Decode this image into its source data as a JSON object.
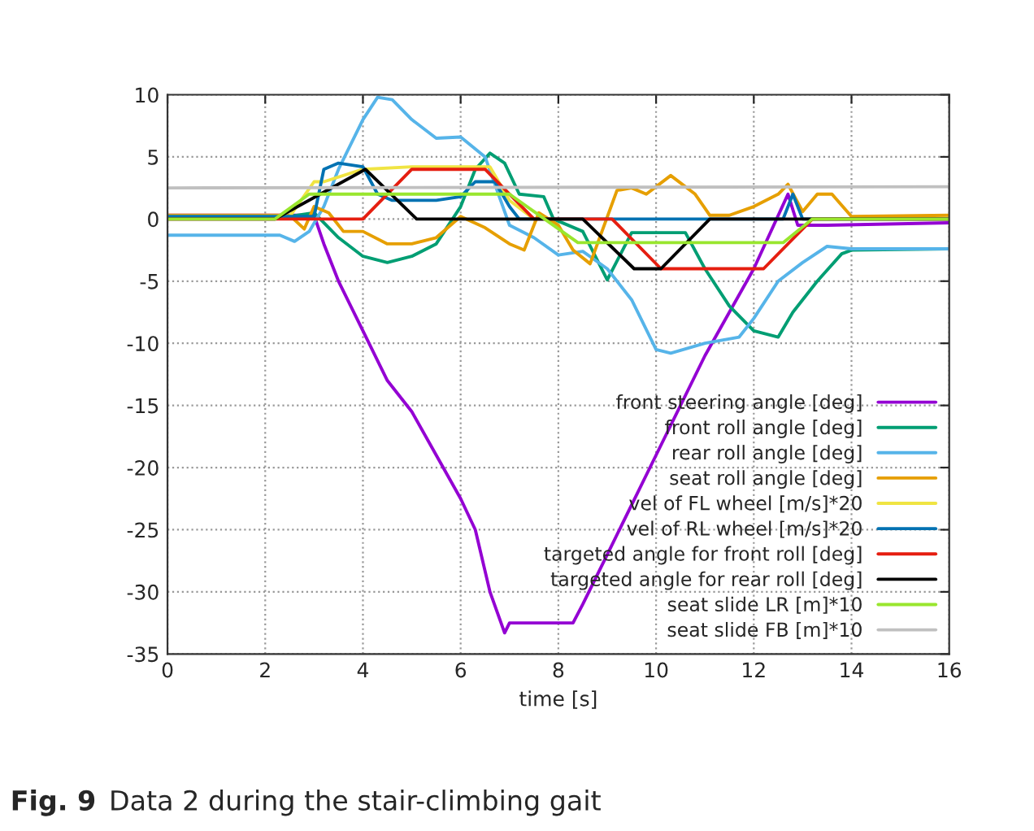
{
  "chart_data": {
    "type": "line",
    "xlabel": "time [s]",
    "xlim": [
      0,
      16
    ],
    "xticks": [
      0,
      2,
      4,
      6,
      8,
      10,
      12,
      14,
      16
    ],
    "ylim": [
      -35,
      10
    ],
    "yticks": [
      -35,
      -30,
      -25,
      -20,
      -15,
      -10,
      -5,
      0,
      5,
      10
    ],
    "grid": true,
    "legend": "bottom right",
    "line_style": "solid",
    "marker": "none",
    "annotations": [
      "Fig. 9",
      "Data 2 during the stair-climbing gait"
    ],
    "series": [
      {
        "name": "front steering angle [deg]",
        "color": "#9400d3",
        "x": [
          0,
          3.0,
          3.2,
          3.5,
          4.0,
          4.5,
          5.0,
          5.5,
          6.0,
          6.3,
          6.6,
          6.9,
          7.0,
          8.3,
          8.5,
          9.0,
          10.0,
          11.0,
          12.0,
          12.7,
          12.9,
          13.5,
          16
        ],
        "values": [
          0.3,
          0.3,
          -2,
          -5,
          -9,
          -13,
          -15.5,
          -19,
          -22.5,
          -25,
          -30,
          -33.3,
          -32.5,
          -32.5,
          -31,
          -27,
          -19,
          -11,
          -4,
          2,
          -0.5,
          -0.5,
          -0.3
        ]
      },
      {
        "name": "front roll angle [deg]",
        "color": "#009e73",
        "x": [
          0,
          2.5,
          3.0,
          3.5,
          4.0,
          4.5,
          5.0,
          5.5,
          6.0,
          6.3,
          6.6,
          6.9,
          7.2,
          7.7,
          7.9,
          8.5,
          9.0,
          9.5,
          10.6,
          11.0,
          11.5,
          12.0,
          12.5,
          12.8,
          13.3,
          13.8,
          14.0,
          16
        ],
        "values": [
          0.2,
          0.2,
          0.5,
          -1.5,
          -3,
          -3.5,
          -3,
          -2,
          1,
          4,
          5.3,
          4.5,
          2,
          1.8,
          0,
          -1,
          -4.9,
          -1.1,
          -1.1,
          -4,
          -7,
          -9,
          -9.5,
          -7.5,
          -5,
          -2.8,
          -2.5,
          -2.4
        ]
      },
      {
        "name": "rear roll angle [deg]",
        "color": "#56b4e9",
        "x": [
          0,
          2.3,
          2.6,
          2.9,
          3.2,
          3.5,
          4.0,
          4.3,
          4.6,
          5.0,
          5.5,
          6.0,
          6.5,
          7.0,
          7.5,
          8.0,
          8.5,
          9.0,
          9.5,
          10.0,
          10.3,
          11.0,
          11.7,
          12.0,
          12.5,
          13.0,
          13.5,
          14.0,
          16
        ],
        "values": [
          -1.3,
          -1.3,
          -1.8,
          -1,
          1,
          4,
          8,
          9.8,
          9.6,
          8,
          6.5,
          6.6,
          5,
          -0.5,
          -1.5,
          -2.9,
          -2.6,
          -4,
          -6.5,
          -10.5,
          -10.8,
          -10,
          -9.5,
          -8,
          -5,
          -3.5,
          -2.2,
          -2.4,
          -2.4
        ]
      },
      {
        "name": "seat roll angle [deg]",
        "color": "#e69f00",
        "x": [
          0,
          2.5,
          2.8,
          3.0,
          3.3,
          3.6,
          4.0,
          4.5,
          5.0,
          5.5,
          6.0,
          6.5,
          7.0,
          7.3,
          7.6,
          8.0,
          8.3,
          8.65,
          9.2,
          9.5,
          9.8,
          10.3,
          10.8,
          11.1,
          11.5,
          12.0,
          12.5,
          12.7,
          13.0,
          13.3,
          13.6,
          14.0,
          16
        ],
        "values": [
          0.3,
          0.3,
          -0.8,
          1,
          0.5,
          -1,
          -1,
          -2,
          -2,
          -1.5,
          0.2,
          -0.7,
          -2,
          -2.5,
          0.5,
          -0.5,
          -2.5,
          -3.6,
          2.3,
          2.5,
          2,
          3.5,
          2,
          0.3,
          0.3,
          1,
          2,
          2.8,
          0.6,
          2,
          2,
          0.2,
          0.3
        ]
      },
      {
        "name": "vel of FL wheel [m/s]*20",
        "color": "#f0e442",
        "x": [
          0,
          2.5,
          3.0,
          3.2,
          4.0,
          5.0,
          6.6,
          7.0,
          7.5
        ],
        "values": [
          0.2,
          0.2,
          3,
          3,
          4,
          4.2,
          4.2,
          1.5,
          0
        ]
      },
      {
        "name": "vel of RL wheel [m/s]*20",
        "color": "#0072b2",
        "x": [
          0,
          3.0,
          3.2,
          3.5,
          4.0,
          4.3,
          4.6,
          5.5,
          6.0,
          6.3,
          6.7,
          7.0,
          7.2,
          12.6,
          12.8,
          13.0,
          16
        ],
        "values": [
          0.2,
          0.2,
          4,
          4.5,
          4.2,
          2,
          1.5,
          1.5,
          1.8,
          3,
          3,
          1,
          0,
          0,
          2,
          0,
          0
        ]
      },
      {
        "name": "targeted angle for front roll [deg]",
        "color": "#e51e10",
        "x": [
          0,
          4.0,
          5.0,
          6.5,
          7.5,
          9.1,
          10.1,
          12.2,
          13.2,
          16
        ],
        "values": [
          0,
          0,
          4,
          4,
          0,
          0,
          -4,
          -4,
          0,
          0
        ]
      },
      {
        "name": "targeted angle for rear roll [deg]",
        "color": "#000000",
        "x": [
          0,
          2.2,
          4.05,
          5.1,
          8.5,
          9.55,
          10.1,
          11.1,
          16
        ],
        "values": [
          0,
          0,
          4,
          0,
          0,
          -4,
          -4,
          0,
          0
        ]
      },
      {
        "name": "seat slide LR [m]*10",
        "color": "#99e62e",
        "x": [
          0,
          2.2,
          2.9,
          7.0,
          7.5,
          8.4,
          12.6,
          13.2,
          16
        ],
        "values": [
          0,
          0,
          2,
          2,
          0.6,
          -1.9,
          -1.9,
          0,
          0
        ]
      },
      {
        "name": "seat slide FB [m]*10",
        "color": "#c0c0c0",
        "x": [
          0,
          16
        ],
        "values": [
          2.5,
          2.6
        ]
      }
    ]
  }
}
